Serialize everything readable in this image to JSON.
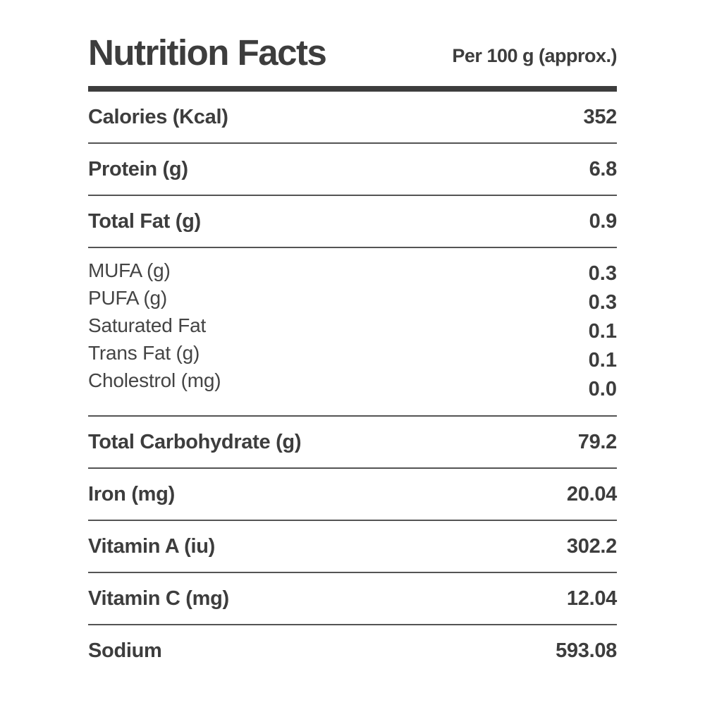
{
  "header": {
    "title": "Nutrition Facts",
    "serving": "Per 100 g (approx.)"
  },
  "colors": {
    "text": "#3d3d3d",
    "sub_label_text": "#444444",
    "thick_rule": "#3d3d3d",
    "thin_rule": "#545454",
    "background": "#ffffff"
  },
  "rows": [
    {
      "label": "Calories (Kcal)",
      "value": "352"
    },
    {
      "label": "Protein (g)",
      "value": "6.8"
    },
    {
      "label": "Total Fat (g)",
      "value": "0.9"
    },
    {
      "group": [
        {
          "label": "MUFA (g)",
          "value": "0.3"
        },
        {
          "label": "PUFA (g)",
          "value": "0.3"
        },
        {
          "label": "Saturated Fat",
          "value": "0.1"
        },
        {
          "label": "Trans Fat (g)",
          "value": "0.1"
        },
        {
          "label": "Cholestrol (mg)",
          "value": "0.0"
        }
      ]
    },
    {
      "label": "Total Carbohydrate (g)",
      "value": "79.2"
    },
    {
      "label": "Iron (mg)",
      "value": "20.04"
    },
    {
      "label": "Vitamin A (iu)",
      "value": "302.2"
    },
    {
      "label": "Vitamin C (mg)",
      "value": "12.04"
    },
    {
      "label": "Sodium",
      "value": "593.08"
    }
  ]
}
